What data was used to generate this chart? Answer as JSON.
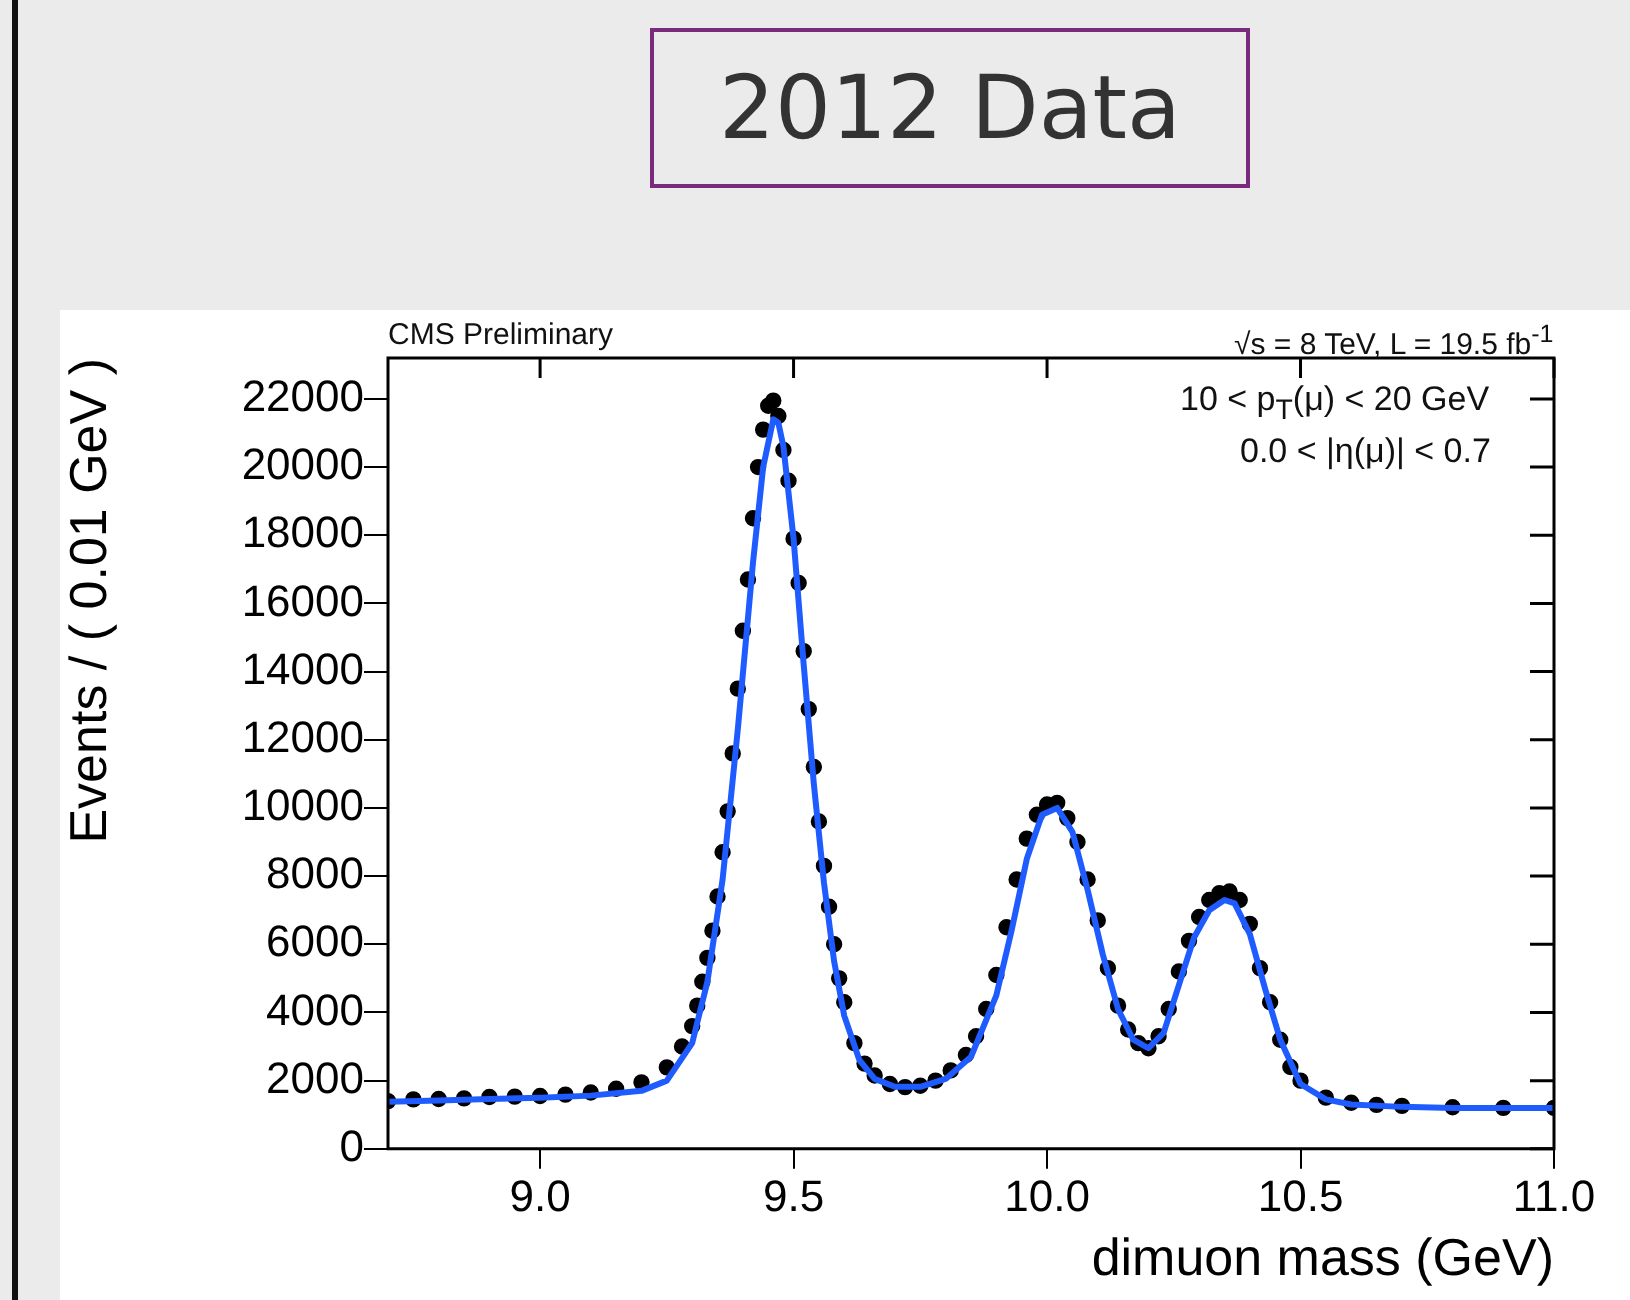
{
  "chart_data": {
    "type": "scatter",
    "title": "2012 Data",
    "xlabel": "dimuon mass (GeV)",
    "ylabel": "Events / ( 0.01 GeV )",
    "annotations": [
      "CMS Preliminary",
      "√s = 8 TeV, L = 19.5 fb$^{-1}$",
      "10 < p$_{T}$(μ) < 20 GeV",
      "0.0 < |η(μ)| < 0.7"
    ],
    "xlim": [
      8.7,
      11.0
    ],
    "ylim": [
      0,
      23200
    ],
    "xticks": [
      {
        "value": 9,
        "label": "9.0"
      },
      9.5,
      {
        "value": 10,
        "label": "10.0"
      },
      10.5,
      {
        "value": 11,
        "label": "11.0"
      }
    ],
    "yticks": [
      0,
      2000,
      4000,
      6000,
      8000,
      10000,
      12000,
      14000,
      16000,
      18000,
      20000,
      22000
    ],
    "grid": false,
    "legend": false,
    "series": [
      {
        "color": "#000000",
        "marker": "circle",
        "x": [
          8.7,
          8.75,
          8.8,
          8.85,
          8.9,
          8.95,
          9.0,
          9.05,
          9.1,
          9.15,
          9.2,
          9.25,
          9.28,
          9.3,
          9.31,
          9.32,
          9.33,
          9.34,
          9.35,
          9.36,
          9.37,
          9.38,
          9.39,
          9.4,
          9.41,
          9.42,
          9.43,
          9.44,
          9.45,
          9.46,
          9.47,
          9.48,
          9.49,
          9.5,
          9.51,
          9.52,
          9.53,
          9.54,
          9.55,
          9.56,
          9.57,
          9.58,
          9.59,
          9.6,
          9.62,
          9.64,
          9.66,
          9.69,
          9.72,
          9.75,
          9.78,
          9.81,
          9.84,
          9.86,
          9.88,
          9.9,
          9.92,
          9.94,
          9.96,
          9.98,
          10.0,
          10.02,
          10.04,
          10.06,
          10.08,
          10.1,
          10.12,
          10.14,
          10.16,
          10.18,
          10.2,
          10.22,
          10.24,
          10.26,
          10.28,
          10.3,
          10.32,
          10.34,
          10.36,
          10.38,
          10.4,
          10.42,
          10.44,
          10.46,
          10.48,
          10.5,
          10.55,
          10.6,
          10.65,
          10.7,
          10.8,
          10.9,
          11.0
        ],
        "values": [
          1400,
          1450,
          1460,
          1480,
          1520,
          1530,
          1550,
          1590,
          1650,
          1760,
          1950,
          2390,
          3000,
          3600,
          4200,
          4900,
          5600,
          6400,
          7400,
          8700,
          9900,
          11600,
          13500,
          15200,
          16700,
          18500,
          20000,
          21100,
          21800,
          21950,
          21500,
          20500,
          19600,
          17900,
          16600,
          14600,
          12900,
          11200,
          9600,
          8300,
          7100,
          6000,
          5000,
          4300,
          3100,
          2500,
          2150,
          1900,
          1810,
          1850,
          2000,
          2300,
          2750,
          3300,
          4100,
          5100,
          6500,
          7900,
          9100,
          9800,
          10100,
          10150,
          9700,
          9000,
          7900,
          6700,
          5300,
          4200,
          3500,
          3100,
          2950,
          3300,
          4100,
          5200,
          6100,
          6800,
          7300,
          7500,
          7550,
          7300,
          6600,
          5300,
          4300,
          3200,
          2400,
          2000,
          1500,
          1350,
          1290,
          1260,
          1220,
          1200,
          1200
        ]
      },
      {
        "type": "line",
        "color": "#1f5cff",
        "marker": "none",
        "line_style": "solid",
        "x": [
          8.7,
          8.8,
          8.9,
          9.0,
          9.1,
          9.2,
          9.25,
          9.3,
          9.33,
          9.36,
          9.39,
          9.42,
          9.44,
          9.46,
          9.47,
          9.48,
          9.5,
          9.52,
          9.54,
          9.56,
          9.58,
          9.6,
          9.63,
          9.66,
          9.7,
          9.75,
          9.8,
          9.85,
          9.9,
          9.93,
          9.96,
          9.99,
          10.02,
          10.05,
          10.08,
          10.11,
          10.14,
          10.17,
          10.2,
          10.23,
          10.26,
          10.29,
          10.32,
          10.35,
          10.37,
          10.4,
          10.43,
          10.46,
          10.5,
          10.55,
          10.6,
          10.7,
          10.8,
          10.9,
          11.0
        ],
        "values": [
          1380,
          1420,
          1460,
          1500,
          1560,
          1700,
          2000,
          3100,
          4900,
          7900,
          12300,
          17200,
          20000,
          21400,
          21300,
          20600,
          17900,
          14200,
          10700,
          7800,
          5500,
          3900,
          2600,
          2050,
          1820,
          1820,
          2050,
          2700,
          4500,
          6400,
          8500,
          9800,
          10000,
          9300,
          7600,
          5700,
          4100,
          3200,
          2950,
          3400,
          4800,
          6200,
          7000,
          7300,
          7200,
          6300,
          4700,
          3200,
          1900,
          1450,
          1300,
          1230,
          1200,
          1200,
          1200
        ]
      }
    ]
  }
}
